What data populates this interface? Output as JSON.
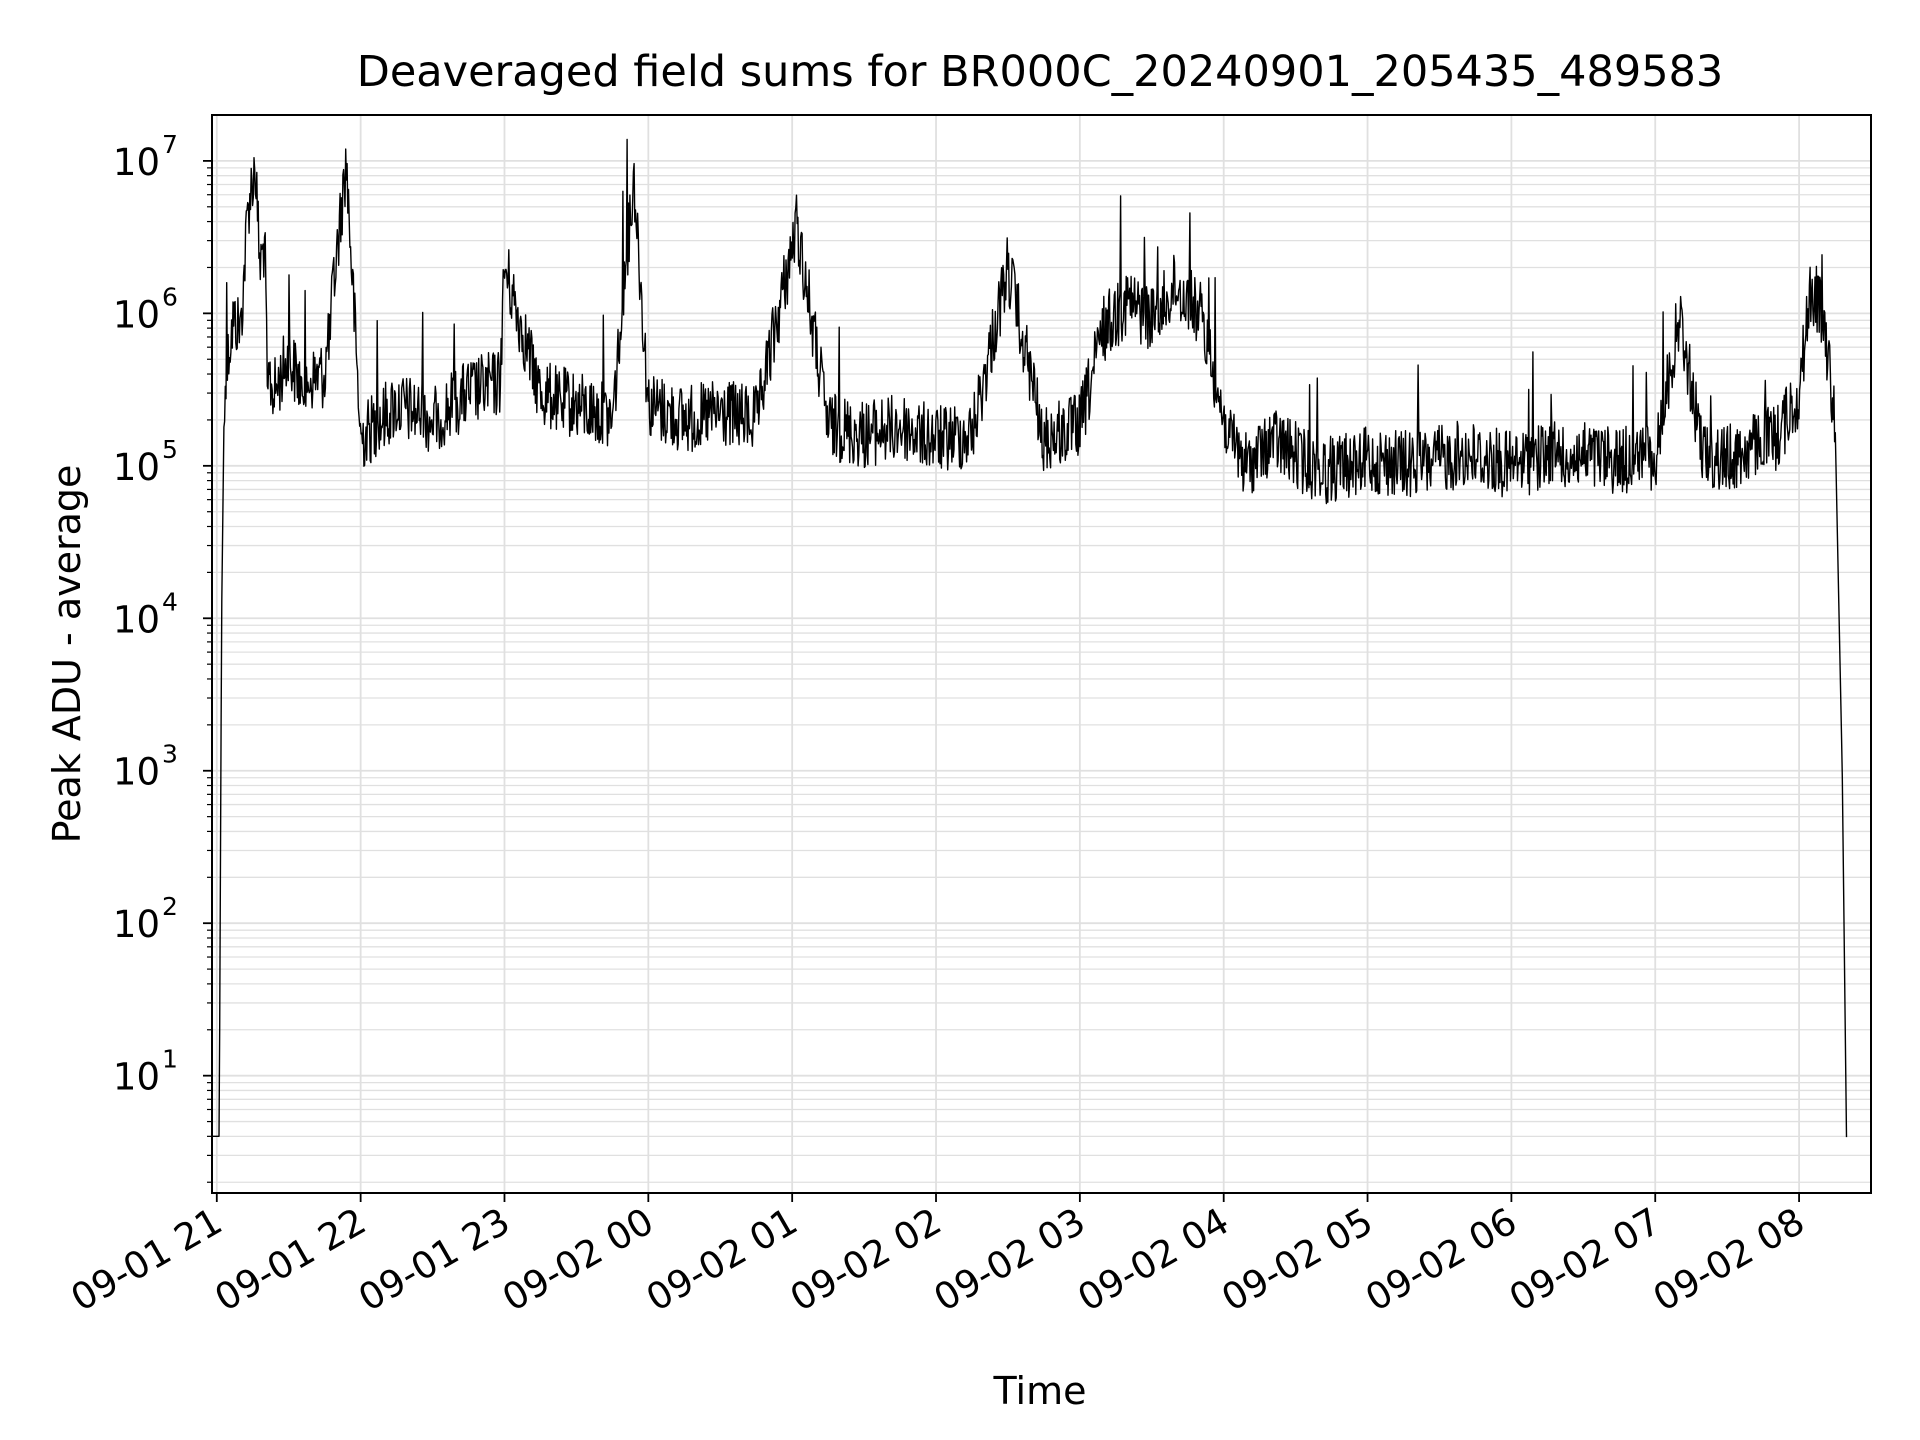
{
  "chart_data": {
    "type": "line",
    "title": "Deaveraged field sums for BR000C_20240901_205435_489583",
    "xlabel": "Time",
    "ylabel": "Peak ADU - average",
    "yscale": "log",
    "ylim": [
      1.7,
      20000000
    ],
    "xlim": [
      "2024-09-01 20:58",
      "2024-09-02 08:30"
    ],
    "grid": true,
    "line_color": "#000000",
    "grid_color": "#e0e0e0",
    "x_ticks": [
      {
        "label": "09-01 21",
        "time": "2024-09-01 21:00"
      },
      {
        "label": "09-01 22",
        "time": "2024-09-01 22:00"
      },
      {
        "label": "09-01 23",
        "time": "2024-09-01 23:00"
      },
      {
        "label": "09-02 00",
        "time": "2024-09-02 00:00"
      },
      {
        "label": "09-02 01",
        "time": "2024-09-02 01:00"
      },
      {
        "label": "09-02 02",
        "time": "2024-09-02 02:00"
      },
      {
        "label": "09-02 03",
        "time": "2024-09-02 03:00"
      },
      {
        "label": "09-02 04",
        "time": "2024-09-02 04:00"
      },
      {
        "label": "09-02 05",
        "time": "2024-09-02 05:00"
      },
      {
        "label": "09-02 06",
        "time": "2024-09-02 06:00"
      },
      {
        "label": "09-02 07",
        "time": "2024-09-02 07:00"
      },
      {
        "label": "09-02 08",
        "time": "2024-09-02 08:00"
      }
    ],
    "y_ticks": [
      {
        "base": "10",
        "exp": "1",
        "value": 10
      },
      {
        "base": "10",
        "exp": "2",
        "value": 100
      },
      {
        "base": "10",
        "exp": "3",
        "value": 1000
      },
      {
        "base": "10",
        "exp": "4",
        "value": 10000
      },
      {
        "base": "10",
        "exp": "5",
        "value": 100000
      },
      {
        "base": "10",
        "exp": "6",
        "value": 1000000
      },
      {
        "base": "10",
        "exp": "7",
        "value": 10000000
      }
    ],
    "series": [
      {
        "x": [
          "2024-09-01 20:58",
          "2024-09-01 21:01",
          "2024-09-01 21:02",
          "2024-09-01 21:03",
          "2024-09-01 21:05",
          "2024-09-01 21:07",
          "2024-09-01 21:10",
          "2024-09-01 21:13",
          "2024-09-01 21:16",
          "2024-09-01 21:18",
          "2024-09-01 21:20",
          "2024-09-01 21:21",
          "2024-09-01 21:24",
          "2024-09-01 21:27",
          "2024-09-01 21:30",
          "2024-09-01 21:35",
          "2024-09-01 21:45",
          "2024-09-01 21:54",
          "2024-09-01 22:00",
          "2024-09-01 22:15",
          "2024-09-01 22:30",
          "2024-09-01 22:45",
          "2024-09-01 22:58",
          "2024-09-01 23:00",
          "2024-09-01 23:15",
          "2024-09-01 23:30",
          "2024-09-01 23:45",
          "2024-09-01 23:54",
          "2024-09-02 00:00",
          "2024-09-02 00:15",
          "2024-09-02 00:30",
          "2024-09-02 00:45",
          "2024-09-02 01:02",
          "2024-09-02 01:15",
          "2024-09-02 01:30",
          "2024-09-02 01:45",
          "2024-09-02 02:00",
          "2024-09-02 02:15",
          "2024-09-02 02:30",
          "2024-09-02 02:45",
          "2024-09-02 03:00",
          "2024-09-02 03:10",
          "2024-09-02 03:20",
          "2024-09-02 03:30",
          "2024-09-02 03:40",
          "2024-09-02 03:50",
          "2024-09-02 04:00",
          "2024-09-02 04:10",
          "2024-09-02 04:20",
          "2024-09-02 04:40",
          "2024-09-02 05:00",
          "2024-09-02 05:20",
          "2024-09-02 05:40",
          "2024-09-02 06:00",
          "2024-09-02 06:20",
          "2024-09-02 06:40",
          "2024-09-02 07:00",
          "2024-09-02 07:10",
          "2024-09-02 07:20",
          "2024-09-02 07:30",
          "2024-09-02 07:40",
          "2024-09-02 07:50",
          "2024-09-02 08:00",
          "2024-09-02 08:05",
          "2024-09-02 08:10",
          "2024-09-02 08:15",
          "2024-09-02 08:18",
          "2024-09-02 08:20"
        ],
        "y": [
          4,
          4,
          10000,
          200000,
          600000,
          900000,
          800000,
          5000000,
          9500000,
          2000000,
          3000000,
          400000,
          300000,
          400000,
          500000,
          350000,
          400000,
          10000000,
          150000,
          250000,
          200000,
          300000,
          350000,
          2000000,
          300000,
          250000,
          200000,
          8000000,
          250000,
          200000,
          220000,
          200000,
          3800000,
          180000,
          160000,
          180000,
          150000,
          160000,
          2000000,
          150000,
          180000,
          800000,
          1200000,
          900000,
          1500000,
          1000000,
          200000,
          100000,
          150000,
          90000,
          110000,
          100000,
          120000,
          100000,
          120000,
          110000,
          110000,
          1000000,
          120000,
          110000,
          130000,
          150000,
          300000,
          1500000,
          1000000,
          200000,
          1000,
          2
        ]
      }
    ]
  }
}
